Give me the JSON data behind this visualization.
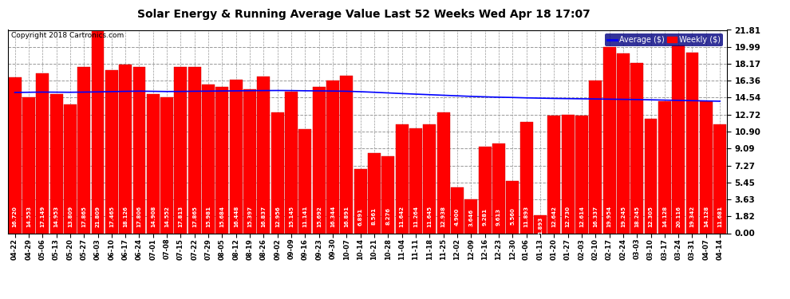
{
  "title": "Solar Energy & Running Average Value Last 52 Weeks Wed Apr 18 17:07",
  "copyright": "Copyright 2018 Cartronics.com",
  "legend_labels": [
    "Average ($)",
    "Weekly ($)"
  ],
  "legend_colors": [
    "#0000ff",
    "#ff0000"
  ],
  "bar_color": "#ff0000",
  "line_color": "#0000ff",
  "background_color": "#ffffff",
  "plot_bg_color": "#ffffff",
  "grid_color": "#999999",
  "bar_edge_color": "#cc0000",
  "ylim": [
    0,
    21.81
  ],
  "yticks": [
    0.0,
    1.82,
    3.63,
    5.45,
    7.27,
    9.09,
    10.9,
    12.72,
    14.54,
    16.36,
    18.17,
    19.99,
    21.81
  ],
  "categories": [
    "04-22",
    "04-29",
    "05-06",
    "05-13",
    "05-20",
    "05-27",
    "06-03",
    "06-10",
    "06-17",
    "06-24",
    "07-01",
    "07-08",
    "07-15",
    "07-22",
    "07-29",
    "08-05",
    "08-12",
    "08-19",
    "08-26",
    "09-02",
    "09-09",
    "09-16",
    "09-23",
    "09-30",
    "10-07",
    "10-14",
    "10-21",
    "10-28",
    "11-04",
    "11-11",
    "11-18",
    "11-25",
    "12-02",
    "12-09",
    "12-16",
    "12-23",
    "12-30",
    "01-06",
    "01-13",
    "01-20",
    "01-27",
    "02-03",
    "02-10",
    "02-17",
    "02-24",
    "03-03",
    "03-10",
    "03-17",
    "03-24",
    "03-31",
    "04-07",
    "04-14"
  ],
  "weekly_values": [
    16.72,
    14.553,
    17.149,
    14.953,
    13.809,
    17.865,
    21.809,
    17.465,
    18.126,
    17.806,
    14.908,
    14.552,
    17.813,
    17.865,
    15.981,
    15.684,
    16.448,
    15.397,
    16.837,
    12.956,
    15.145,
    11.141,
    15.692,
    16.344,
    16.891,
    6.891,
    8.561,
    8.276,
    11.642,
    11.264,
    11.645,
    12.938,
    4.9,
    3.646,
    9.281,
    9.613,
    5.56,
    11.893,
    1.893,
    12.642,
    12.73,
    12.614,
    16.337,
    19.954,
    19.245,
    18.245,
    12.305,
    14.128,
    20.116,
    19.342,
    14.128,
    11.681
  ],
  "average_values": [
    15.1,
    15.12,
    15.14,
    15.13,
    15.12,
    15.14,
    15.16,
    15.19,
    15.22,
    15.24,
    15.22,
    15.2,
    15.21,
    15.23,
    15.24,
    15.26,
    15.27,
    15.29,
    15.3,
    15.31,
    15.3,
    15.28,
    15.27,
    15.25,
    15.23,
    15.18,
    15.12,
    15.05,
    14.98,
    14.92,
    14.86,
    14.8,
    14.74,
    14.68,
    14.63,
    14.59,
    14.56,
    14.52,
    14.49,
    14.46,
    14.44,
    14.42,
    14.4,
    14.38,
    14.36,
    14.34,
    14.31,
    14.28,
    14.25,
    14.22,
    14.19,
    14.16
  ],
  "label_fontsize": 5.0,
  "title_fontsize": 10,
  "tick_fontsize": 7.5,
  "xtick_fontsize": 6.0
}
